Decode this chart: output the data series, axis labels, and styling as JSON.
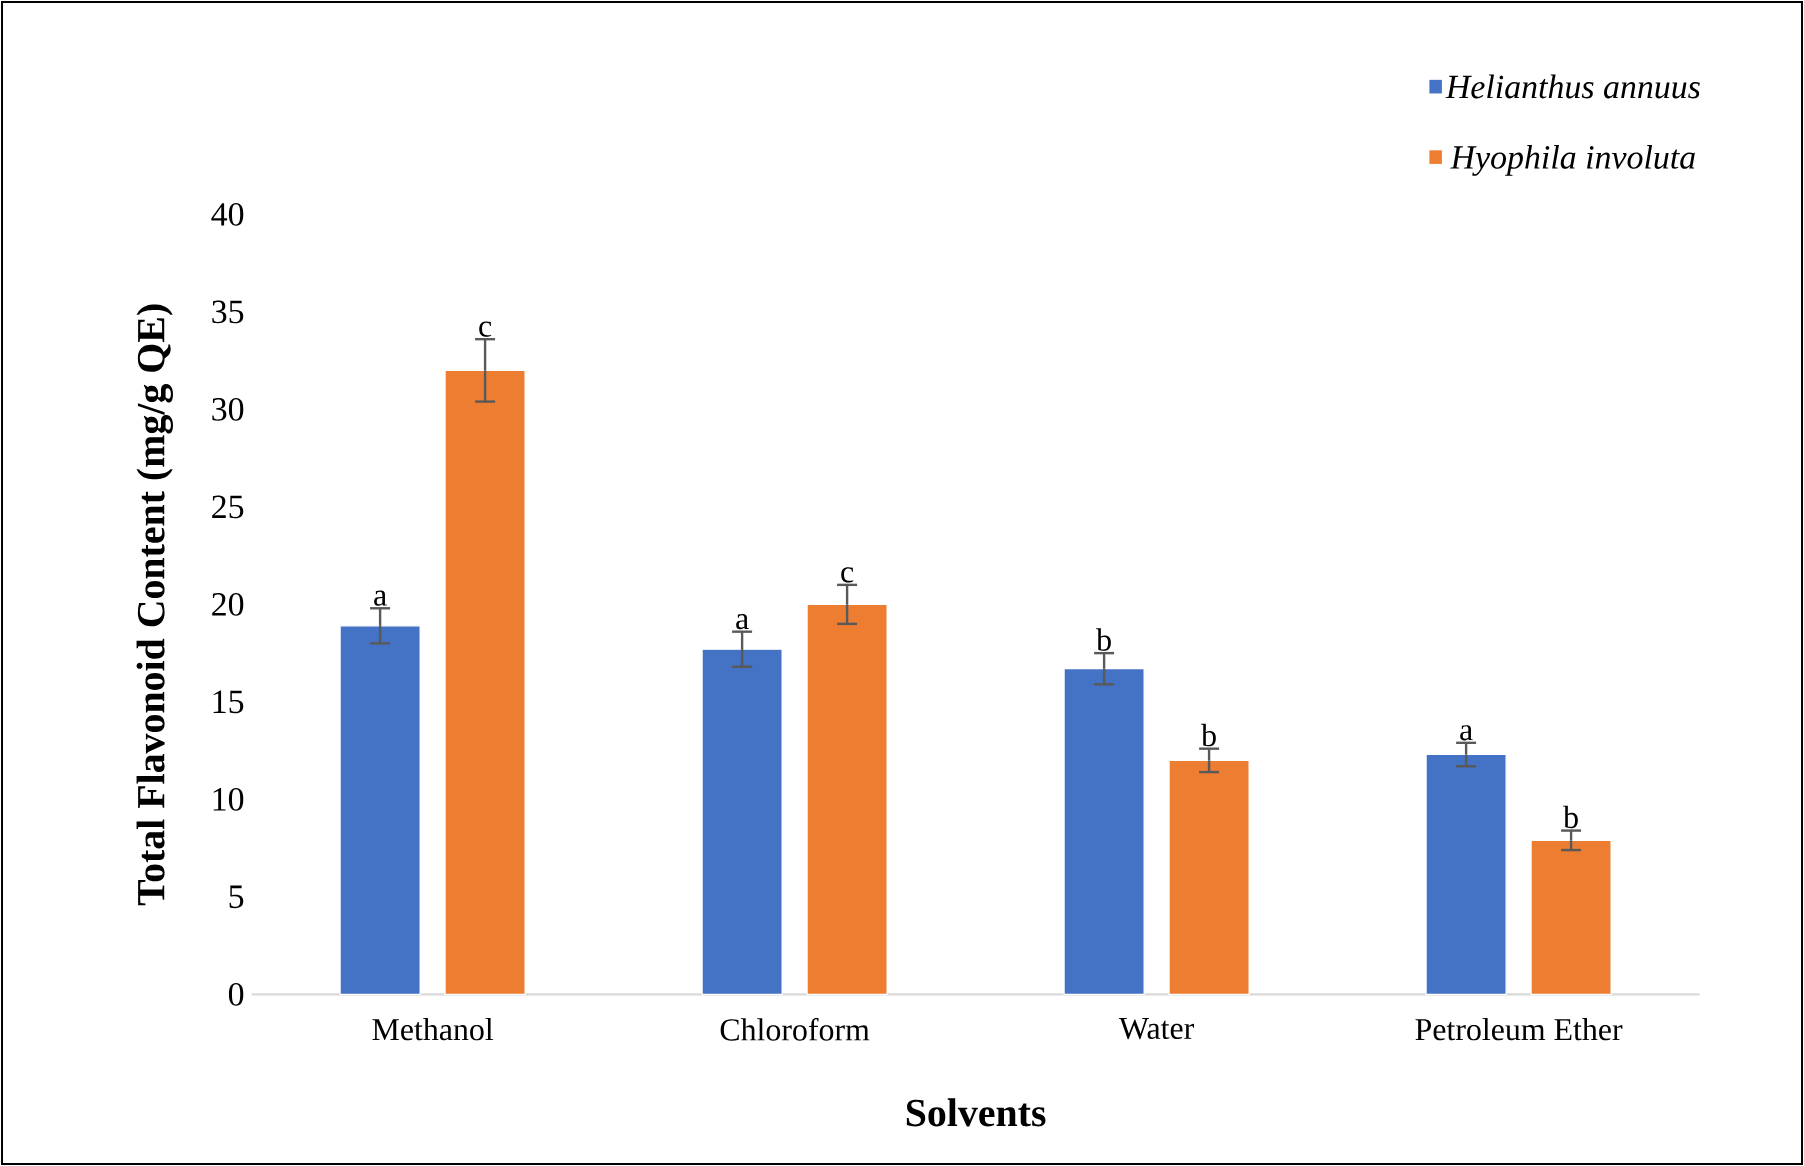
{
  "chart_data": {
    "type": "bar",
    "xlabel": "Solvents",
    "ylabel": "Total Flavonoid Content (mg/g QE)",
    "categories": [
      "Methanol",
      "Chloroform",
      "Water",
      "Petroleum Ether"
    ],
    "series": [
      {
        "name": "Helianthus annuus",
        "color": "#4472c4",
        "values": [
          18.9,
          17.7,
          16.7,
          12.3
        ],
        "errors": [
          0.9,
          0.9,
          0.8,
          0.6
        ],
        "value_labels": [
          "a",
          "a",
          "b",
          "a"
        ]
      },
      {
        "name": "Hyophila involuta",
        "color": "#ed7d31",
        "values": [
          32,
          20,
          12,
          7.9
        ],
        "errors": [
          1.6,
          1.0,
          0.6,
          0.5
        ],
        "value_labels": [
          "c",
          "c",
          "b",
          "b"
        ]
      }
    ],
    "ylim": [
      0,
      40
    ],
    "yticks": [
      0,
      5,
      10,
      15,
      20,
      25,
      30,
      35,
      40
    ],
    "grid": false,
    "legend": "top right"
  }
}
